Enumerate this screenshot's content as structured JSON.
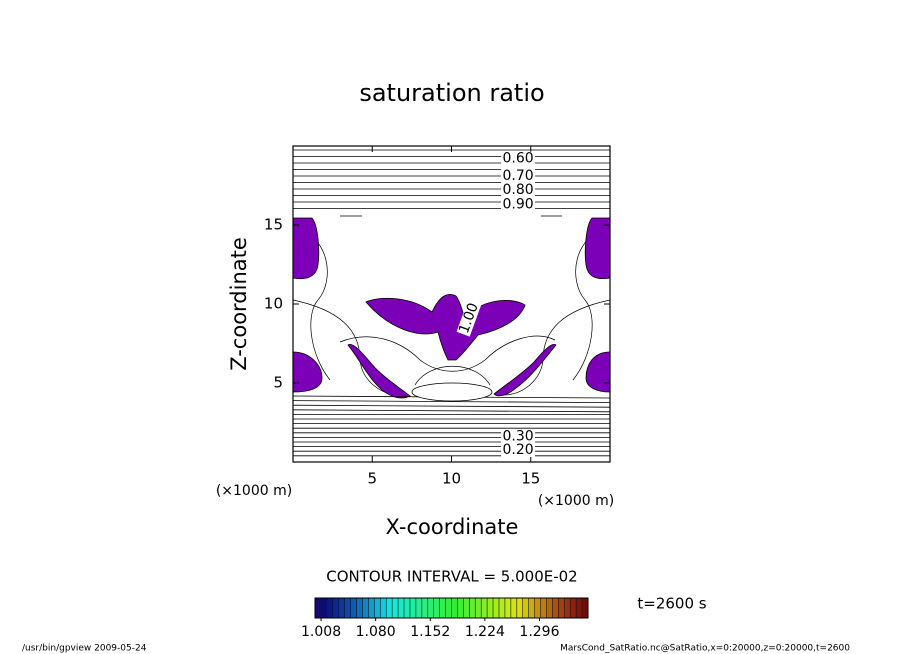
{
  "chart_data": {
    "type": "contour",
    "title": "saturation ratio",
    "x_label": "X-coordinate",
    "y_label": "Z-coordinate",
    "x_unit": "(×1000 m)",
    "y_unit": "(×1000 m)",
    "xlim": [
      0,
      20
    ],
    "ylim": [
      0,
      20
    ],
    "xticks": [
      5,
      10,
      15
    ],
    "yticks": [
      5,
      10,
      15
    ],
    "fill_color": "#7d00b9",
    "levels": [
      {
        "value": 0.6,
        "label": "0.60"
      },
      {
        "value": 0.7,
        "label": "0.70"
      },
      {
        "value": 0.8,
        "label": "0.80"
      },
      {
        "value": 0.9,
        "label": "0.90"
      },
      {
        "value": 1.0,
        "label": "1.00"
      },
      {
        "value": 0.3,
        "label": "0.30"
      },
      {
        "value": 0.2,
        "label": "0.20"
      }
    ],
    "contour_interval": "CONTOUR INTERVAL = 5.000E-02",
    "time": "t=2600 s",
    "colorbar": {
      "clim": [
        1.0,
        1.36
      ],
      "ticks": [
        {
          "value": 1.008,
          "label": "1.008"
        },
        {
          "value": 1.08,
          "label": "1.080"
        },
        {
          "value": 1.152,
          "label": "1.152"
        },
        {
          "value": 1.224,
          "label": "1.224"
        },
        {
          "value": 1.296,
          "label": "1.296"
        }
      ]
    },
    "program_note": "/usr/bin/gpview  2009-05-24",
    "source": "MarsCond_SatRatio.nc@SatRatio,x=0:20000,z=0:20000,t=2600"
  }
}
